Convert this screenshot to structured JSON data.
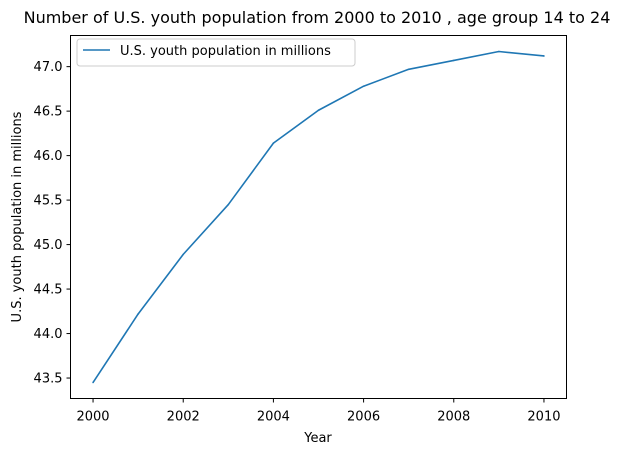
{
  "chart_data": {
    "type": "line",
    "title": "Number of U.S. youth population from 2000 to 2010 , age group 14 to 24",
    "xlabel": "Year",
    "ylabel": "U.S. youth population in millions",
    "x": [
      2000,
      2001,
      2002,
      2003,
      2004,
      2005,
      2006,
      2007,
      2008,
      2009,
      2010
    ],
    "series": [
      {
        "name": "U.S. youth population in millions",
        "values": [
          43.45,
          44.22,
          44.89,
          45.45,
          46.14,
          46.51,
          46.78,
          46.97,
          47.07,
          47.17,
          47.12
        ],
        "color": "#1f77b4"
      }
    ],
    "xlim": [
      1999.5,
      2010.5
    ],
    "ylim": [
      43.27,
      47.35
    ],
    "xticks": [
      2000,
      2002,
      2004,
      2006,
      2008,
      2010
    ],
    "yticks": [
      43.5,
      44.0,
      44.5,
      45.0,
      45.5,
      46.0,
      46.5,
      47.0
    ],
    "ytick_labels": [
      "43.5",
      "44.0",
      "44.5",
      "45.0",
      "45.5",
      "46.0",
      "46.5",
      "47.0"
    ],
    "grid": false,
    "legend": "upper-left"
  }
}
